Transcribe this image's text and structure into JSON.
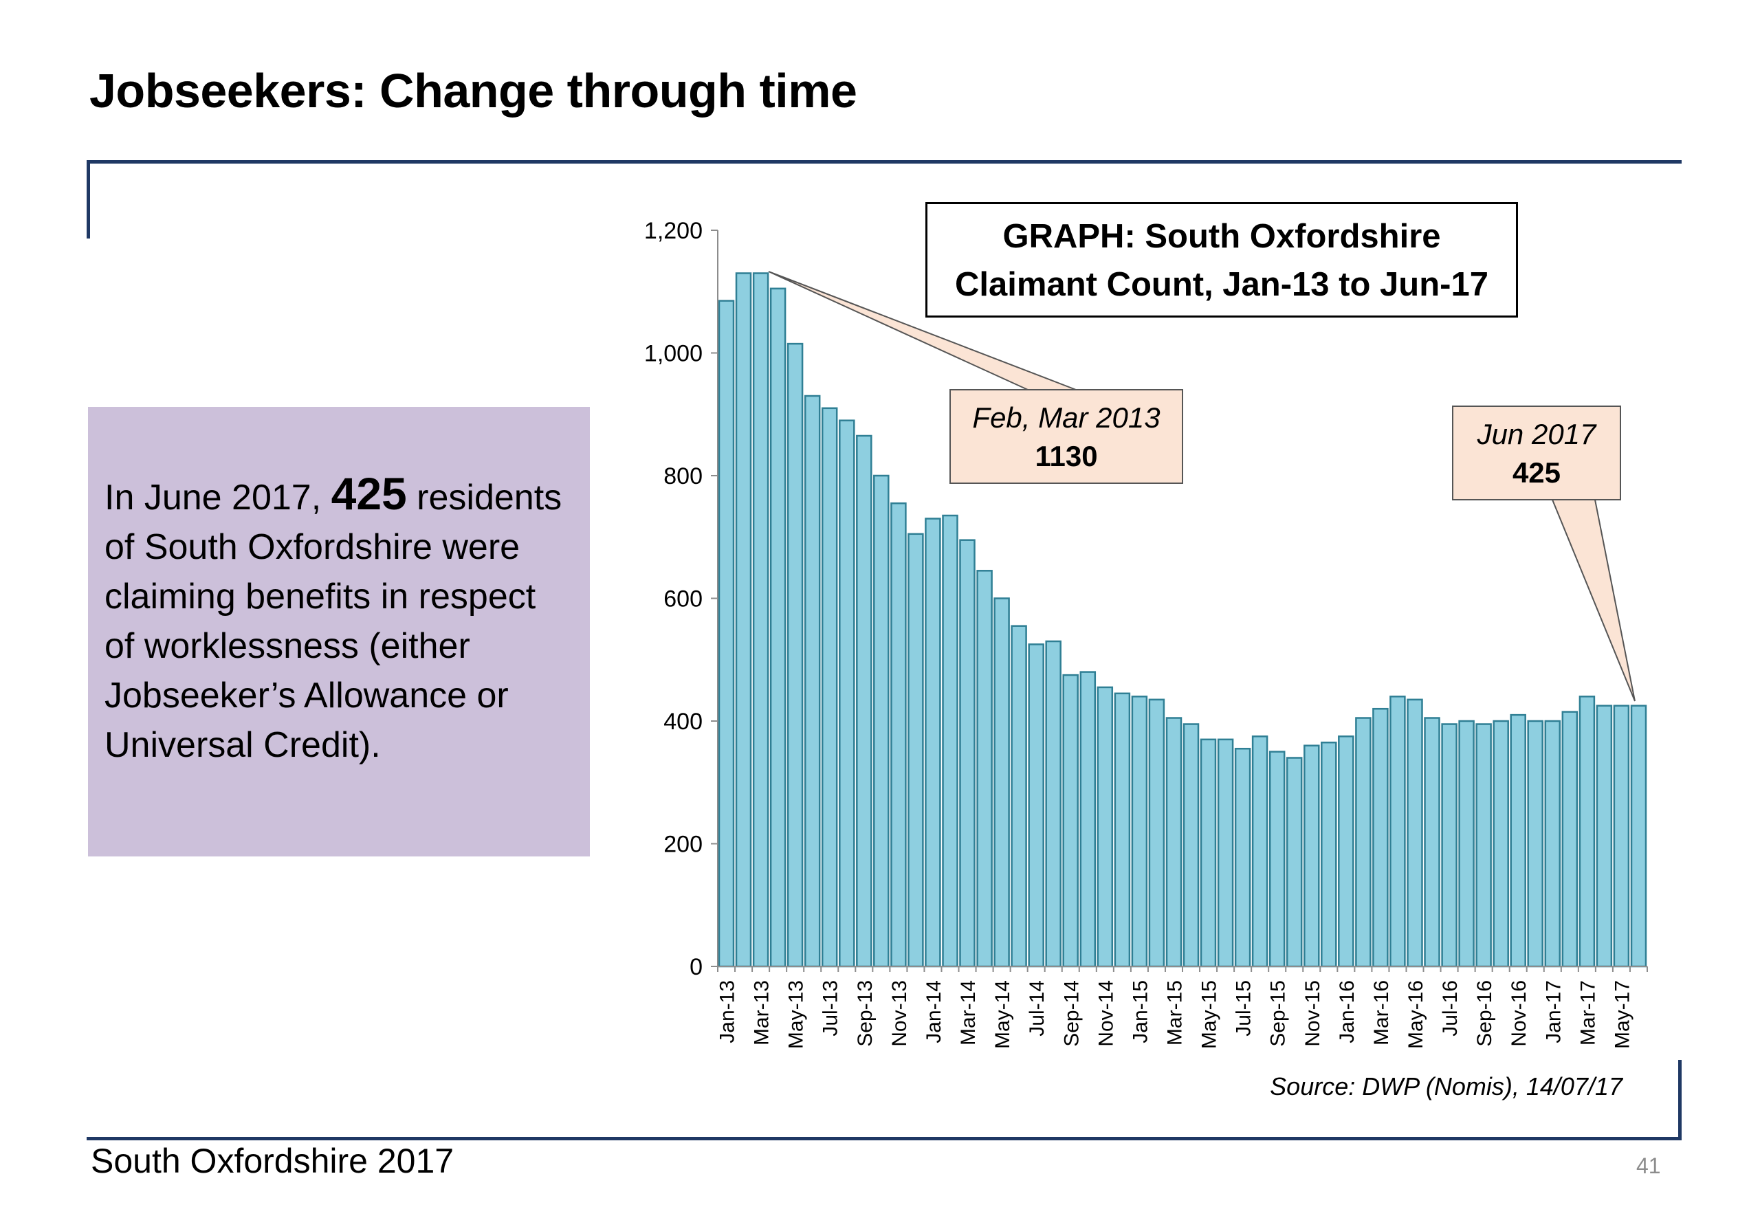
{
  "slide": {
    "title": "Jobseekers: Change through time",
    "footer": "South Oxfordshire  2017",
    "page_number": "41"
  },
  "info_box": {
    "text_before": "In June 2017, ",
    "highlight": "425",
    "text_after": " residents of South Oxfordshire were claiming benefits in respect of worklessness (either Jobseeker’s Allowance or Universal Credit)."
  },
  "graph_title": {
    "line1": "GRAPH: South Oxfordshire",
    "line2": "Claimant Count, Jan-13 to Jun-17"
  },
  "callouts": {
    "feb": {
      "label": "Feb, Mar 2013",
      "value": "1130"
    },
    "jun": {
      "label": "Jun 2017",
      "value": "425"
    }
  },
  "source": "Source: DWP (Nomis), 14/07/17",
  "colors": {
    "bar_fill": "#8ecfe0",
    "bar_stroke": "#2f7f94",
    "rule": "#1f3864",
    "info_box": "#ccc0da",
    "callout": "#fbe4d5"
  },
  "chart_data": {
    "type": "bar",
    "title": "GRAPH: South Oxfordshire Claimant Count, Jan-13 to Jun-17",
    "xlabel": "",
    "ylabel": "",
    "ylim": [
      0,
      1200
    ],
    "y_ticks": [
      "0",
      "200",
      "400",
      "600",
      "800",
      "1,000",
      "1,200"
    ],
    "y_tick_values": [
      0,
      200,
      400,
      600,
      800,
      1000,
      1200
    ],
    "grid": false,
    "categories": [
      "Jan-13",
      "Feb-13",
      "Mar-13",
      "Apr-13",
      "May-13",
      "Jun-13",
      "Jul-13",
      "Aug-13",
      "Sep-13",
      "Oct-13",
      "Nov-13",
      "Dec-13",
      "Jan-14",
      "Feb-14",
      "Mar-14",
      "Apr-14",
      "May-14",
      "Jun-14",
      "Jul-14",
      "Aug-14",
      "Sep-14",
      "Oct-14",
      "Nov-14",
      "Dec-14",
      "Jan-15",
      "Feb-15",
      "Mar-15",
      "Apr-15",
      "May-15",
      "Jun-15",
      "Jul-15",
      "Aug-15",
      "Sep-15",
      "Oct-15",
      "Nov-15",
      "Dec-15",
      "Jan-16",
      "Feb-16",
      "Mar-16",
      "Apr-16",
      "May-16",
      "Jun-16",
      "Jul-16",
      "Aug-16",
      "Sep-16",
      "Oct-16",
      "Nov-16",
      "Dec-16",
      "Jan-17",
      "Feb-17",
      "Mar-17",
      "Apr-17",
      "May-17",
      "Jun-17"
    ],
    "shown_tick_labels": [
      "Jan-13",
      "Mar-13",
      "May-13",
      "Jul-13",
      "Sep-13",
      "Nov-13",
      "Jan-14",
      "Mar-14",
      "May-14",
      "Jul-14",
      "Sep-14",
      "Nov-14",
      "Jan-15",
      "Mar-15",
      "May-15",
      "Jul-15",
      "Sep-15",
      "Nov-15",
      "Jan-16",
      "Mar-16",
      "May-16",
      "Jul-16",
      "Sep-16",
      "Nov-16",
      "Jan-17",
      "Mar-17",
      "May-17"
    ],
    "values": [
      1085,
      1130,
      1130,
      1105,
      1015,
      930,
      910,
      890,
      865,
      800,
      755,
      705,
      730,
      735,
      695,
      645,
      600,
      555,
      525,
      530,
      475,
      480,
      455,
      445,
      440,
      435,
      405,
      395,
      370,
      370,
      355,
      375,
      350,
      340,
      360,
      365,
      375,
      405,
      420,
      440,
      435,
      405,
      395,
      400,
      395,
      400,
      410,
      400,
      400,
      415,
      440,
      425,
      425,
      425
    ]
  }
}
